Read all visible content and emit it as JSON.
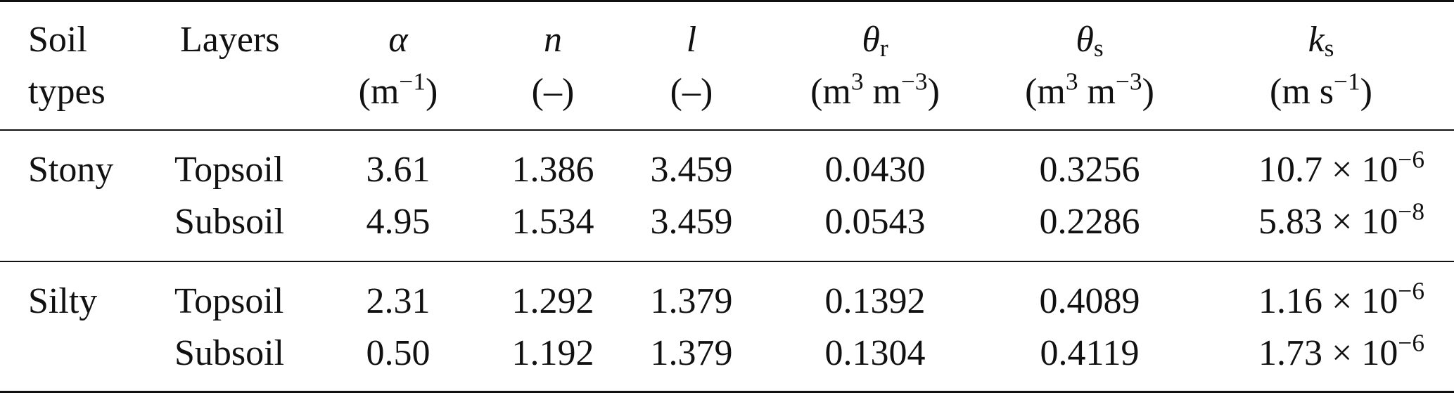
{
  "header": {
    "soil_types_line1": "Soil",
    "soil_types_line2": "types",
    "layers": "Layers",
    "alpha_symbol": "α",
    "alpha_unit_base": "(m",
    "alpha_unit_exp": "−1",
    "alpha_unit_close": ")",
    "n_symbol": "n",
    "n_unit": "(–)",
    "l_symbol": "l",
    "l_unit": "(–)",
    "theta_r_symbol": "θ",
    "theta_r_sub": "r",
    "theta_r_unit_a": "(m",
    "theta_r_unit_a_exp": "3",
    "theta_r_unit_b": " m",
    "theta_r_unit_b_exp": "−3",
    "theta_r_unit_close": ")",
    "theta_s_symbol": "θ",
    "theta_s_sub": "s",
    "theta_s_unit_a": "(m",
    "theta_s_unit_a_exp": "3",
    "theta_s_unit_b": " m",
    "theta_s_unit_b_exp": "−3",
    "theta_s_unit_close": ")",
    "ks_symbol": "k",
    "ks_sub": "s",
    "ks_unit_a": "(m s",
    "ks_unit_exp": "−1",
    "ks_unit_close": ")"
  },
  "rows": [
    {
      "soil_type": "Stony",
      "layer": "Topsoil",
      "alpha": "3.61",
      "n": "1.386",
      "l": "3.459",
      "theta_r": "0.0430",
      "theta_s": "0.3256",
      "ks_mant": "10.7 × 10",
      "ks_exp": "−6"
    },
    {
      "soil_type": "",
      "layer": "Subsoil",
      "alpha": "4.95",
      "n": "1.534",
      "l": "3.459",
      "theta_r": "0.0543",
      "theta_s": "0.2286",
      "ks_mant": "5.83 × 10",
      "ks_exp": "−8"
    },
    {
      "soil_type": "Silty",
      "layer": "Topsoil",
      "alpha": "2.31",
      "n": "1.292",
      "l": "1.379",
      "theta_r": "0.1392",
      "theta_s": "0.4089",
      "ks_mant": "1.16 × 10",
      "ks_exp": "−6"
    },
    {
      "soil_type": "",
      "layer": "Subsoil",
      "alpha": "0.50",
      "n": "1.192",
      "l": "1.379",
      "theta_r": "0.1304",
      "theta_s": "0.4119",
      "ks_mant": "1.73 × 10",
      "ks_exp": "−6"
    }
  ]
}
